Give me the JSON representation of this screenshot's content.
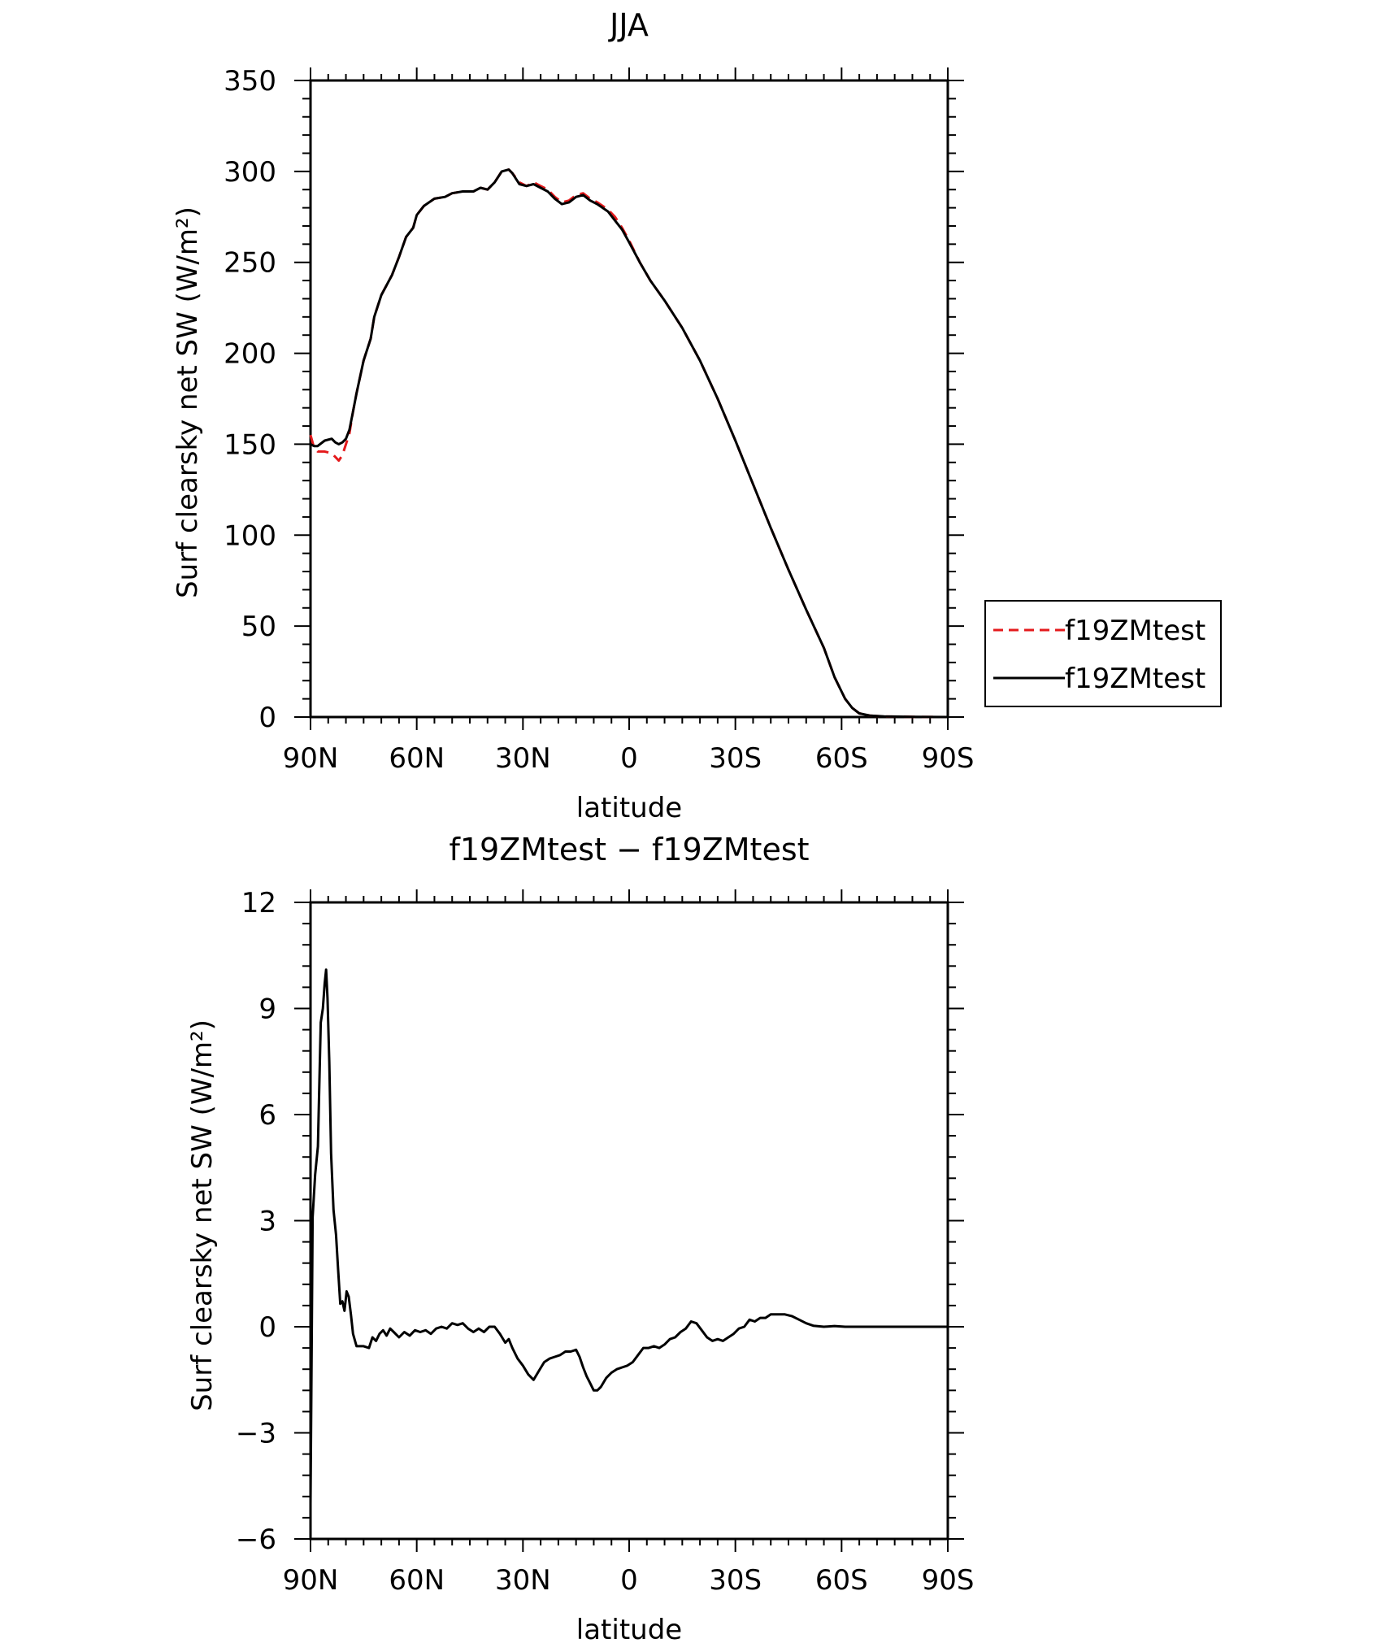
{
  "chart_data": [
    {
      "type": "line",
      "title": "JJA",
      "xlabel": "latitude",
      "ylabel": "Surf clearsky net SW (W/m²)",
      "xlim": [
        90,
        -90
      ],
      "ylim": [
        0,
        350
      ],
      "x_ticks": [
        90,
        60,
        30,
        0,
        -30,
        -60,
        -90
      ],
      "x_tick_labels": [
        "90N",
        "60N",
        "30N",
        "0",
        "30S",
        "60S",
        "90S"
      ],
      "y_ticks": [
        0,
        50,
        100,
        150,
        200,
        250,
        300,
        350
      ],
      "y_tick_labels": [
        "0",
        "50",
        "100",
        "150",
        "200",
        "250",
        "300",
        "350"
      ],
      "legend_position": "right",
      "series": [
        {
          "name": "f19ZMtest",
          "color": "#e41a1c",
          "style": "dashed",
          "points": [
            [
              90,
              155
            ],
            [
              89,
              148
            ],
            [
              88,
              146
            ],
            [
              86,
              146
            ],
            [
              84,
              145
            ],
            [
              83,
              143
            ],
            [
              82,
              141
            ],
            [
              81,
              144
            ],
            [
              80,
              150
            ],
            [
              79,
              156
            ],
            [
              78,
              168
            ],
            [
              77,
              178
            ],
            [
              75,
              196
            ],
            [
              73,
              208
            ],
            [
              72,
              220
            ],
            [
              70,
              232
            ],
            [
              67,
              243
            ],
            [
              65,
              253
            ],
            [
              63,
              264
            ],
            [
              61,
              269
            ],
            [
              60,
              276
            ],
            [
              58,
              281
            ],
            [
              55,
              285
            ],
            [
              52,
              286
            ],
            [
              50,
              288
            ],
            [
              47,
              289
            ],
            [
              44,
              289
            ],
            [
              42,
              291
            ],
            [
              40,
              290
            ],
            [
              38,
              294
            ],
            [
              36,
              300
            ],
            [
              34,
              301
            ],
            [
              33,
              299
            ],
            [
              31,
              294
            ],
            [
              29,
              292
            ],
            [
              27,
              294
            ],
            [
              25,
              292
            ],
            [
              23,
              290
            ],
            [
              21,
              286
            ],
            [
              19,
              283
            ],
            [
              17,
              284
            ],
            [
              15,
              287
            ],
            [
              13,
              288
            ],
            [
              11,
              285
            ],
            [
              9,
              283
            ],
            [
              6,
              279
            ],
            [
              4,
              275
            ],
            [
              2,
              269
            ],
            [
              0,
              262
            ],
            [
              -3,
              250
            ],
            [
              -6,
              240
            ],
            [
              -10,
              229
            ],
            [
              -15,
              214
            ],
            [
              -20,
              196
            ],
            [
              -25,
              175
            ],
            [
              -30,
              152
            ],
            [
              -35,
              128
            ],
            [
              -40,
              104
            ],
            [
              -45,
              81
            ],
            [
              -50,
              59
            ],
            [
              -55,
              38
            ],
            [
              -58,
              22
            ],
            [
              -61,
              10
            ],
            [
              -63,
              5
            ],
            [
              -65,
              2
            ],
            [
              -68,
              0.8
            ],
            [
              -72,
              0.3
            ],
            [
              -80,
              0.1
            ],
            [
              -90,
              0
            ]
          ]
        },
        {
          "name": "f19ZMtest",
          "color": "#000000",
          "style": "solid",
          "points": [
            [
              90,
              150
            ],
            [
              89,
              149
            ],
            [
              88,
              149
            ],
            [
              86,
              152
            ],
            [
              84,
              153
            ],
            [
              83,
              151
            ],
            [
              82,
              150
            ],
            [
              81,
              151
            ],
            [
              80,
              153
            ],
            [
              79,
              158
            ],
            [
              78,
              168
            ],
            [
              77,
              178
            ],
            [
              75,
              196
            ],
            [
              73,
              208
            ],
            [
              72,
              220
            ],
            [
              70,
              232
            ],
            [
              67,
              243
            ],
            [
              65,
              253
            ],
            [
              63,
              264
            ],
            [
              61,
              269
            ],
            [
              60,
              276
            ],
            [
              58,
              281
            ],
            [
              55,
              285
            ],
            [
              52,
              286
            ],
            [
              50,
              288
            ],
            [
              47,
              289
            ],
            [
              44,
              289
            ],
            [
              42,
              291
            ],
            [
              40,
              290
            ],
            [
              38,
              294
            ],
            [
              36,
              300
            ],
            [
              34,
              301
            ],
            [
              33,
              299
            ],
            [
              31,
              293
            ],
            [
              29,
              292
            ],
            [
              27,
              293
            ],
            [
              25,
              291
            ],
            [
              23,
              289
            ],
            [
              21,
              285
            ],
            [
              19,
              282
            ],
            [
              17,
              283
            ],
            [
              15,
              286
            ],
            [
              13,
              287
            ],
            [
              11,
              284
            ],
            [
              9,
              282
            ],
            [
              6,
              278
            ],
            [
              4,
              273
            ],
            [
              2,
              268
            ],
            [
              0,
              261
            ],
            [
              -3,
              250
            ],
            [
              -6,
              240
            ],
            [
              -10,
              229
            ],
            [
              -15,
              214
            ],
            [
              -20,
              196
            ],
            [
              -25,
              175
            ],
            [
              -30,
              152
            ],
            [
              -35,
              128
            ],
            [
              -40,
              104
            ],
            [
              -45,
              81
            ],
            [
              -50,
              59
            ],
            [
              -55,
              38
            ],
            [
              -58,
              22
            ],
            [
              -61,
              10
            ],
            [
              -63,
              5
            ],
            [
              -65,
              2
            ],
            [
              -68,
              0.8
            ],
            [
              -72,
              0.3
            ],
            [
              -80,
              0.1
            ],
            [
              -90,
              0
            ]
          ]
        }
      ]
    },
    {
      "type": "line",
      "title": "f19ZMtest − f19ZMtest",
      "xlabel": "latitude",
      "ylabel": "Surf clearsky net SW (W/m²)",
      "xlim": [
        90,
        -90
      ],
      "ylim": [
        -6,
        12
      ],
      "x_ticks": [
        90,
        60,
        30,
        0,
        -30,
        -60,
        -90
      ],
      "x_tick_labels": [
        "90N",
        "60N",
        "30N",
        "0",
        "30S",
        "60S",
        "90S"
      ],
      "y_ticks": [
        -6,
        -3,
        0,
        3,
        6,
        9,
        12
      ],
      "y_tick_labels": [
        "−6",
        "−3",
        "0",
        "3",
        "6",
        "9",
        "12"
      ],
      "series": [
        {
          "color": "#000000",
          "style": "solid",
          "points": [
            [
              90,
              -5
            ],
            [
              89.4,
              3.1
            ],
            [
              88.7,
              4.3
            ],
            [
              87.9,
              5.1
            ],
            [
              87.1,
              8.6
            ],
            [
              86.5,
              9.0
            ],
            [
              86,
              9.7
            ],
            [
              85.6,
              10.1
            ],
            [
              85.2,
              9.3
            ],
            [
              84.7,
              7.5
            ],
            [
              84.2,
              4.9
            ],
            [
              83.5,
              3.3
            ],
            [
              82.8,
              2.6
            ],
            [
              82.2,
              1.6
            ],
            [
              81.6,
              0.65
            ],
            [
              81,
              0.72
            ],
            [
              80.4,
              0.45
            ],
            [
              79.8,
              1.0
            ],
            [
              79.2,
              0.85
            ],
            [
              78.6,
              0.35
            ],
            [
              78,
              -0.2
            ],
            [
              77,
              -0.55
            ],
            [
              75,
              -0.55
            ],
            [
              73.5,
              -0.6
            ],
            [
              72.5,
              -0.3
            ],
            [
              71.5,
              -0.4
            ],
            [
              70.5,
              -0.2
            ],
            [
              69.5,
              -0.1
            ],
            [
              68.5,
              -0.25
            ],
            [
              67.5,
              -0.05
            ],
            [
              66.5,
              -0.15
            ],
            [
              65,
              -0.3
            ],
            [
              63.5,
              -0.15
            ],
            [
              62,
              -0.25
            ],
            [
              60.5,
              -0.1
            ],
            [
              59,
              -0.15
            ],
            [
              57.5,
              -0.1
            ],
            [
              56,
              -0.2
            ],
            [
              54.5,
              -0.05
            ],
            [
              53,
              0
            ],
            [
              51.5,
              -0.05
            ],
            [
              50,
              0.1
            ],
            [
              48.5,
              0.05
            ],
            [
              47,
              0.1
            ],
            [
              45.5,
              -0.05
            ],
            [
              44,
              -0.15
            ],
            [
              42.5,
              -0.05
            ],
            [
              41,
              -0.15
            ],
            [
              39.5,
              0
            ],
            [
              38,
              0
            ],
            [
              36.5,
              -0.2
            ],
            [
              35,
              -0.45
            ],
            [
              34,
              -0.35
            ],
            [
              33,
              -0.6
            ],
            [
              31.5,
              -0.9
            ],
            [
              30,
              -1.1
            ],
            [
              28.5,
              -1.35
            ],
            [
              27,
              -1.5
            ],
            [
              25.5,
              -1.25
            ],
            [
              24,
              -1.0
            ],
            [
              22.5,
              -0.9
            ],
            [
              21,
              -0.85
            ],
            [
              19.5,
              -0.8
            ],
            [
              18,
              -0.7
            ],
            [
              16.5,
              -0.7
            ],
            [
              15,
              -0.65
            ],
            [
              14,
              -0.85
            ],
            [
              13,
              -1.15
            ],
            [
              12,
              -1.4
            ],
            [
              11,
              -1.6
            ],
            [
              10,
              -1.8
            ],
            [
              9,
              -1.8
            ],
            [
              8,
              -1.7
            ],
            [
              6.5,
              -1.45
            ],
            [
              5,
              -1.3
            ],
            [
              3.5,
              -1.2
            ],
            [
              2,
              -1.15
            ],
            [
              0.5,
              -1.1
            ],
            [
              -1,
              -1.0
            ],
            [
              -2.5,
              -0.8
            ],
            [
              -4,
              -0.6
            ],
            [
              -5.5,
              -0.6
            ],
            [
              -7,
              -0.55
            ],
            [
              -8.5,
              -0.6
            ],
            [
              -10,
              -0.5
            ],
            [
              -11.5,
              -0.35
            ],
            [
              -13,
              -0.3
            ],
            [
              -14.5,
              -0.15
            ],
            [
              -16,
              -0.05
            ],
            [
              -17.5,
              0.15
            ],
            [
              -19,
              0.1
            ],
            [
              -20.5,
              -0.1
            ],
            [
              -22,
              -0.3
            ],
            [
              -23.5,
              -0.4
            ],
            [
              -25,
              -0.35
            ],
            [
              -26.5,
              -0.4
            ],
            [
              -28,
              -0.3
            ],
            [
              -29.5,
              -0.2
            ],
            [
              -31,
              -0.05
            ],
            [
              -32.5,
              0
            ],
            [
              -34,
              0.2
            ],
            [
              -35.5,
              0.15
            ],
            [
              -37,
              0.25
            ],
            [
              -38.5,
              0.25
            ],
            [
              -40,
              0.35
            ],
            [
              -42,
              0.35
            ],
            [
              -44,
              0.35
            ],
            [
              -46,
              0.3
            ],
            [
              -48,
              0.2
            ],
            [
              -50,
              0.1
            ],
            [
              -52,
              0.03
            ],
            [
              -55,
              0
            ],
            [
              -58,
              0.02
            ],
            [
              -61,
              0
            ],
            [
              -65,
              0
            ],
            [
              -70,
              0
            ],
            [
              -80,
              0
            ],
            [
              -90,
              0
            ]
          ]
        }
      ]
    }
  ]
}
